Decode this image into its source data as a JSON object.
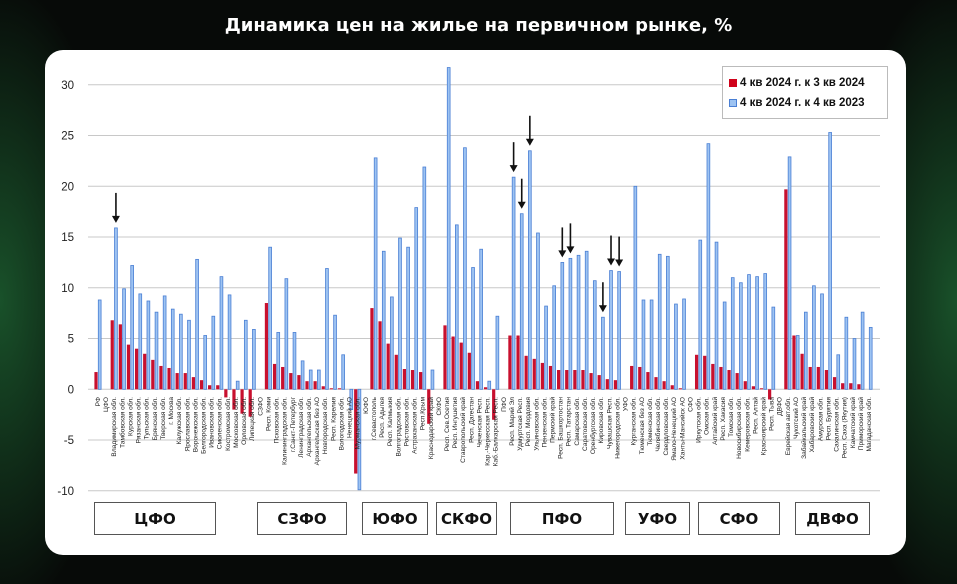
{
  "title": "Динамика цен на жилье на первичном рынке, %",
  "colors": {
    "red": "#c8102e",
    "blue_fill": "#9dc3f2",
    "blue_stroke": "#4a7fd4"
  },
  "districts": [
    "ЦФО",
    "СЗФО",
    "ЮФО",
    "СКФО",
    "ПФО",
    "УФО",
    "СФО",
    "ДВФО"
  ],
  "chart_data": {
    "type": "bar",
    "title": "Динамика цен на жилье на первичном рынке, %",
    "xlabel": "",
    "ylabel": "",
    "ylim": [
      -10,
      32
    ],
    "yticks": [
      -10,
      -5,
      0,
      5,
      10,
      15,
      20,
      25,
      30
    ],
    "grid": true,
    "legend_position": "top-right",
    "categories": [
      "РФ",
      "ЦФО",
      "Владимирская обл.",
      "Тамбовская обл.",
      "Курская обл.",
      "Рязанская обл.",
      "Тульская обл.",
      "Брянская обл.",
      "Тверская обл.",
      "г. Москва",
      "Калужская обл.",
      "Ярославская обл.",
      "Воронежская обл.",
      "Белгородская обл.",
      "Ивановская обл.",
      "Смоленская обл.",
      "Костромская обл.",
      "Московская обл.",
      "Орловская обл.",
      "Липецкая обл.",
      "СЗФО",
      "Респ. Коми",
      "Псковская обл.",
      "Калининградская обл.",
      "г.Санкт-Петербург",
      "Ленинградская обл.",
      "Архангельская обл.",
      "Архангельская без АО",
      "Новгородская обл.",
      "Респ. Карелия",
      "Вологодская обл.",
      "Ненецкий АО",
      "Мурманская обл.",
      "ЮФО",
      "г.Севастополь",
      "Респ. Адыгея",
      "Респ. Калмыкия",
      "Волгоградская обл.",
      "Ростовская обл.",
      "Астраханская обл.",
      "Респ.Крым",
      "Краснодарский край",
      "СКФО",
      "Респ. Сев.Осетия",
      "Респ. Ингушетия",
      "Ставропольский край",
      "Респ. Дагестан",
      "Чеченская Респ.",
      "Кар.-Черкесская Респ.",
      "Каб.-Балкарская Респ.",
      "ПФО",
      "Респ. Марий Эл",
      "Удмуртская Респ.",
      "Респ. Мордовия",
      "Ульяновская обл.",
      "Пензенская обл.",
      "Пермский край",
      "Респ. Башкортостан",
      "Респ. Татарстан",
      "Самарская обл.",
      "Саратовская обл.",
      "Оренбургская обл.",
      "Кировская обл.",
      "Чувашская Респ.",
      "Нижегородская обл.",
      "УФО",
      "Курганская обл.",
      "Тюменская без АО",
      "Тюменская обл.",
      "Челябинская обл.",
      "Свердловская обл.",
      "Ямало-Ненецкий АО",
      "Ханты-Мансийск АО",
      "СФО",
      "Иркутская обл.",
      "Омская обл.",
      "Алтайский край",
      "Респ. Хакасия",
      "Томская обл.",
      "Новосибирская обл.",
      "Кемеровская обл.",
      "Респ. Алтай",
      "Красноярский край",
      "Респ. Тыва",
      "ДВФО",
      "Еврейская авт.обл.",
      "Чукотский АО",
      "Забайкальский край",
      "Хабаровский край",
      "Амурская обл.",
      "Респ. Бурятия",
      "Сахалинская обл.",
      "Респ. Саха (Якутия)",
      "Камчатский край",
      "Приморский край",
      "Магаданская обл."
    ],
    "series": [
      {
        "name": "4 кв 2024 г. к 3 кв 2024",
        "values": [
          1.7,
          null,
          6.8,
          6.4,
          4.4,
          4.0,
          3.5,
          2.9,
          2.3,
          2.1,
          1.6,
          1.6,
          1.2,
          0.9,
          0.4,
          0.4,
          -0.8,
          -2.0,
          -2.4,
          -2.7,
          null,
          8.5,
          2.5,
          2.2,
          1.6,
          1.4,
          0.8,
          0.8,
          0.3,
          0.1,
          0.1,
          0,
          -8.3,
          null,
          8.0,
          6.7,
          4.5,
          3.4,
          2.0,
          1.9,
          1.7,
          -3.4,
          null,
          6.3,
          5.2,
          4.6,
          3.6,
          0.8,
          0.2,
          -3.0,
          null,
          5.3,
          5.3,
          3.3,
          3.0,
          2.6,
          2.3,
          1.9,
          1.9,
          1.9,
          1.9,
          1.6,
          1.4,
          1.0,
          0.9,
          null,
          2.3,
          2.2,
          1.7,
          1.2,
          0.8,
          0.4,
          0.1,
          null,
          3.4,
          3.3,
          2.5,
          2.2,
          1.9,
          1.6,
          0.8,
          0.3,
          0.1,
          -1.0,
          null,
          19.7,
          5.3,
          3.5,
          2.2,
          2.2,
          1.9,
          1.2,
          0.6,
          0.6,
          0.5,
          0
        ]
      },
      {
        "name": "4 кв 2024 г. к 4 кв 2023",
        "values": [
          8.8,
          null,
          15.9,
          9.9,
          12.2,
          9.4,
          8.7,
          7.6,
          9.2,
          7.9,
          7.4,
          6.8,
          12.8,
          5.3,
          7.2,
          11.1,
          9.3,
          0.8,
          6.8,
          5.9,
          null,
          14.0,
          5.6,
          10.9,
          5.6,
          2.8,
          1.9,
          1.9,
          11.9,
          7.3,
          3.4,
          -2.0,
          -9.9,
          null,
          22.8,
          13.6,
          9.1,
          14.9,
          14.0,
          17.9,
          21.9,
          1.9,
          null,
          31.7,
          16.2,
          23.8,
          12.0,
          13.8,
          0.8,
          7.2,
          null,
          20.9,
          17.3,
          23.5,
          15.4,
          8.2,
          10.2,
          12.5,
          12.9,
          13.2,
          13.6,
          10.7,
          7.1,
          11.7,
          11.6,
          null,
          20.0,
          8.8,
          8.8,
          13.3,
          13.1,
          8.4,
          8.9,
          null,
          14.7,
          24.2,
          14.5,
          8.6,
          11.0,
          10.5,
          11.3,
          11.1,
          11.4,
          8.1,
          null,
          22.9,
          5.3,
          7.6,
          10.2,
          9.4,
          25.3,
          3.4,
          7.1,
          5.0,
          7.6,
          6.1
        ]
      }
    ],
    "arrows": [
      "Владимирская обл.",
      "Респ. Марий Эл",
      "Удмуртская Респ.",
      "Респ. Мордовия",
      "Респ. Башкортостан",
      "Респ. Татарстан",
      "Кировская обл.",
      "Чувашская Респ.",
      "Нижегородская обл."
    ]
  }
}
